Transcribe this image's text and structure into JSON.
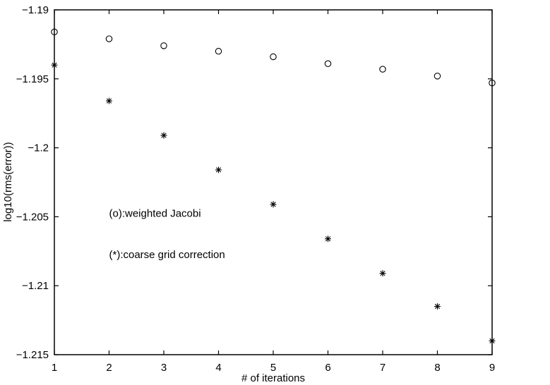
{
  "chart_data": {
    "type": "scatter",
    "title": "",
    "xlabel": "# of iterations",
    "ylabel": "log10(rms(error))",
    "xlim": [
      1,
      9
    ],
    "ylim": [
      -1.215,
      -1.19
    ],
    "xticks": [
      1,
      2,
      3,
      4,
      5,
      6,
      7,
      8,
      9
    ],
    "xtick_labels": [
      "1",
      "2",
      "3",
      "4",
      "5",
      "6",
      "7",
      "8",
      "9"
    ],
    "yticks": [
      -1.19,
      -1.195,
      -1.2,
      -1.205,
      -1.21,
      -1.215
    ],
    "ytick_labels": [
      "−1.19",
      "−1.195",
      "−1.2",
      "−1.205",
      "−1.21",
      "−1.215"
    ],
    "grid": false,
    "series": [
      {
        "marker": "circle",
        "color": "#000000",
        "x": [
          1,
          2,
          3,
          4,
          5,
          6,
          7,
          8,
          9
        ],
        "y": [
          -1.1916,
          -1.1921,
          -1.1926,
          -1.193,
          -1.1934,
          -1.1939,
          -1.1943,
          -1.1948,
          -1.1953
        ]
      },
      {
        "marker": "asterisk",
        "color": "#000000",
        "x": [
          1,
          2,
          3,
          4,
          5,
          6,
          7,
          8,
          9
        ],
        "y": [
          -1.194,
          -1.1966,
          -1.1991,
          -1.2016,
          -1.2041,
          -1.2066,
          -1.2091,
          -1.2115,
          -1.214
        ]
      }
    ],
    "annotations": [
      {
        "text": "(o):weighted Jacobi",
        "x": 2,
        "y": -1.205
      },
      {
        "text": "(*):coarse grid correction",
        "x": 2,
        "y": -1.208
      }
    ]
  }
}
